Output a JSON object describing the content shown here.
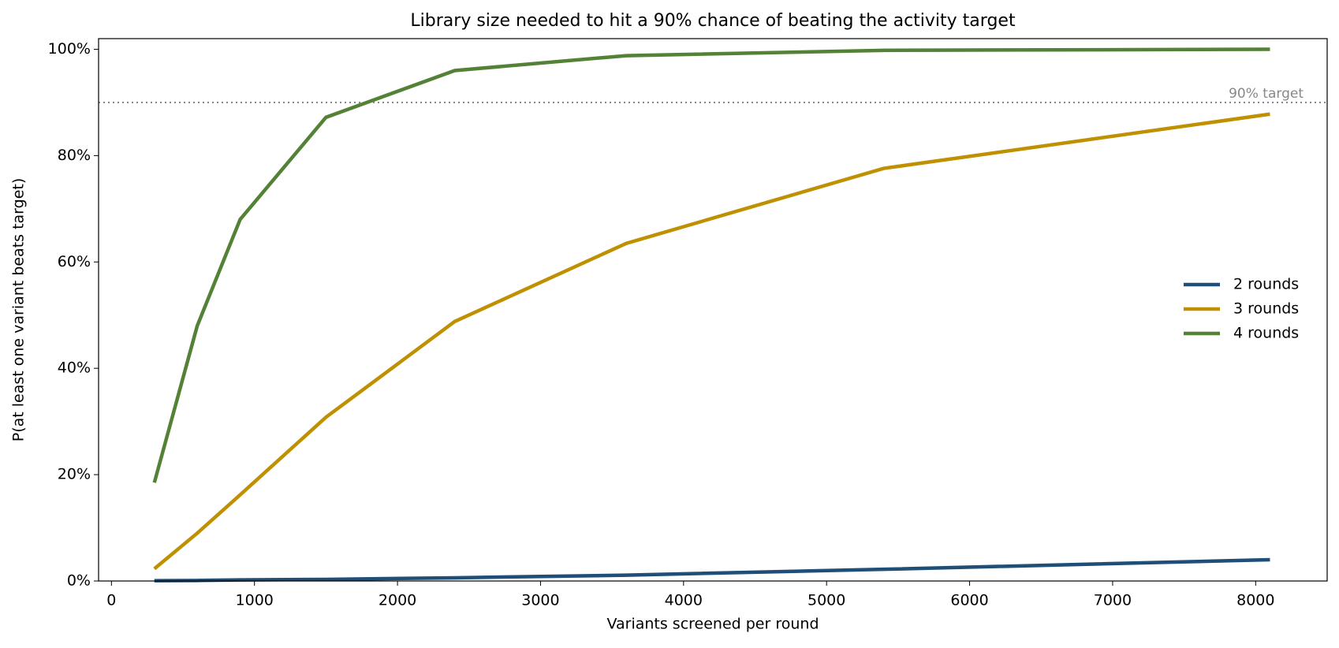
{
  "chart_data": {
    "type": "line",
    "title": "Library size needed to hit a 90% chance of beating the activity target",
    "x_label": "Variants screened per round",
    "y_label": "P(at least one variant beats target)",
    "x": [
      300,
      600,
      900,
      1500,
      2400,
      3600,
      5400,
      8100
    ],
    "series": [
      {
        "name": "2 rounds",
        "color": "#1f4e79",
        "values": [
          0.05,
          0.1,
          0.2,
          0.3,
          0.6,
          1.1,
          2.2,
          4.0
        ]
      },
      {
        "name": "3 rounds",
        "color": "#bf9000",
        "values": [
          2.3,
          9,
          16.2,
          30.8,
          48.8,
          63.5,
          77.6,
          87.8
        ]
      },
      {
        "name": "4 rounds",
        "color": "#538135",
        "values": [
          18.5,
          48,
          68,
          87.2,
          96,
          98.8,
          99.8,
          100
        ]
      }
    ],
    "xlim": [
      -90,
      8500
    ],
    "ylim": [
      0,
      102
    ],
    "xticks": [
      0,
      1000,
      2000,
      3000,
      4000,
      5000,
      6000,
      7000,
      8000
    ],
    "yticks": [
      {
        "value": 0,
        "label": "0%"
      },
      {
        "value": 20,
        "label": "20%"
      },
      {
        "value": 40,
        "label": "40%"
      },
      {
        "value": 60,
        "label": "60%"
      },
      {
        "value": 80,
        "label": "80%"
      },
      {
        "value": 100,
        "label": "100%"
      }
    ],
    "target": {
      "value": 90,
      "label": "90% target",
      "color": "#888888"
    },
    "legend": "right"
  }
}
